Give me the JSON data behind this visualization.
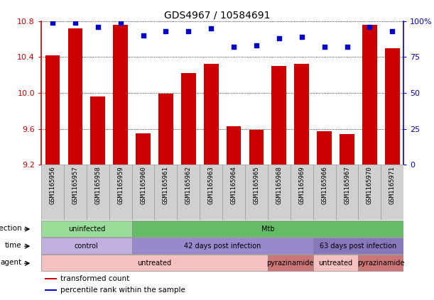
{
  "title": "GDS4967 / 10584691",
  "samples": [
    "GSM1165956",
    "GSM1165957",
    "GSM1165958",
    "GSM1165959",
    "GSM1165960",
    "GSM1165961",
    "GSM1165962",
    "GSM1165963",
    "GSM1165964",
    "GSM1165965",
    "GSM1165968",
    "GSM1165969",
    "GSM1165966",
    "GSM1165967",
    "GSM1165970",
    "GSM1165971"
  ],
  "bar_values": [
    10.42,
    10.72,
    9.96,
    10.76,
    9.55,
    9.99,
    10.22,
    10.32,
    9.63,
    9.59,
    10.3,
    10.32,
    9.57,
    9.54,
    10.76,
    10.5
  ],
  "dot_values": [
    99,
    99,
    96,
    99,
    90,
    93,
    93,
    95,
    82,
    83,
    88,
    89,
    82,
    82,
    96,
    93
  ],
  "ylim_left": [
    9.2,
    10.8
  ],
  "ylim_right": [
    0,
    100
  ],
  "yticks_left": [
    9.2,
    9.6,
    10.0,
    10.4,
    10.8
  ],
  "yticks_right": [
    0,
    25,
    50,
    75,
    100
  ],
  "bar_color": "#cc0000",
  "dot_color": "#0000cc",
  "annotation_rows": [
    {
      "label": "infection",
      "segments": [
        {
          "text": "uninfected",
          "start": 0,
          "end": 4,
          "color": "#99dd99"
        },
        {
          "text": "Mtb",
          "start": 4,
          "end": 16,
          "color": "#66bb66"
        }
      ]
    },
    {
      "label": "time",
      "segments": [
        {
          "text": "control",
          "start": 0,
          "end": 4,
          "color": "#c0b0e0"
        },
        {
          "text": "42 days post infection",
          "start": 4,
          "end": 12,
          "color": "#9988cc"
        },
        {
          "text": "63 days post infection",
          "start": 12,
          "end": 16,
          "color": "#8877bb"
        }
      ]
    },
    {
      "label": "agent",
      "segments": [
        {
          "text": "untreated",
          "start": 0,
          "end": 10,
          "color": "#f5c0c0"
        },
        {
          "text": "pyrazinamide",
          "start": 10,
          "end": 12,
          "color": "#cc7777"
        },
        {
          "text": "untreated",
          "start": 12,
          "end": 14,
          "color": "#f5c0c0"
        },
        {
          "text": "pyrazinamide",
          "start": 14,
          "end": 16,
          "color": "#cc7777"
        }
      ]
    }
  ],
  "legend_items": [
    {
      "color": "#cc0000",
      "label": "transformed count"
    },
    {
      "color": "#0000cc",
      "label": "percentile rank within the sample"
    }
  ],
  "background_color": "#ffffff",
  "plot_bg_color": "#ffffff",
  "sample_box_color": "#d0d0d0",
  "sample_box_edge": "#999999"
}
